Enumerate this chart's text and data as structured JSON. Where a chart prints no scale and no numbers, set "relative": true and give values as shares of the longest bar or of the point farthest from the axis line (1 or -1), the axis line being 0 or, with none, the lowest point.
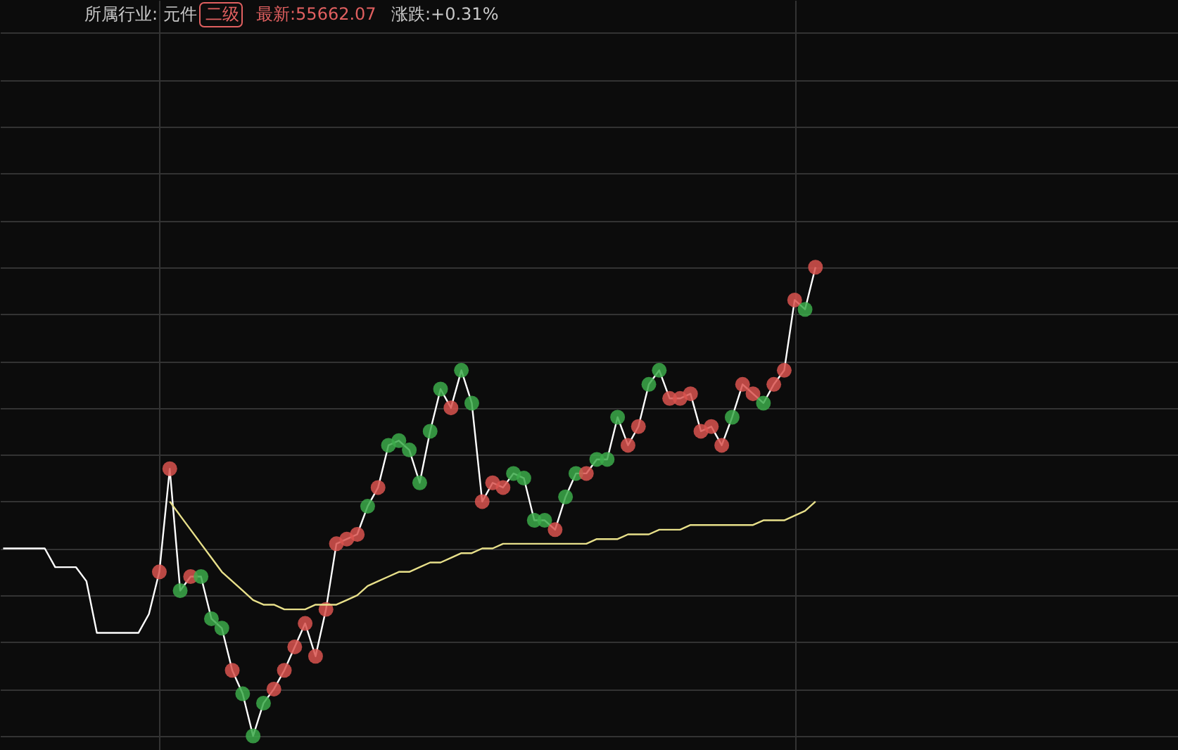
{
  "chart_data": {
    "type": "line",
    "relative": true,
    "title": "所属行业: 元件",
    "subtitle": "二级",
    "annotations": [
      "最新:55662.07",
      "涨跌:+0.31%"
    ],
    "categories": [
      null,
      null,
      null,
      null,
      null,
      null,
      null,
      null,
      null,
      null,
      null,
      null,
      null,
      null,
      null,
      null,
      null,
      null,
      null,
      null,
      null,
      null,
      null,
      null,
      null,
      null,
      null,
      null,
      null,
      null,
      null,
      null,
      null,
      null,
      null,
      null,
      null,
      null,
      null,
      null,
      null,
      null,
      null,
      null,
      null,
      null,
      null,
      null,
      null,
      null,
      null,
      null,
      null,
      null,
      null,
      null,
      null,
      null,
      null,
      null,
      null,
      null,
      null,
      null,
      null,
      null,
      null,
      null,
      null,
      null,
      null,
      null,
      null,
      null,
      null,
      null,
      null,
      null,
      null
    ],
    "grid": true,
    "marker": "circle",
    "line_style": "solid",
    "series": [
      {
        "color": "#ffffff",
        "values": [
          0.4,
          0.4,
          0.4,
          0.4,
          0.4,
          0.36,
          0.36,
          0.36,
          0.33,
          0.22,
          0.22,
          0.22,
          0.22,
          0.22,
          0.26,
          0.35,
          0.57,
          0.31,
          0.34,
          0.34,
          0.25,
          0.23,
          0.14,
          0.09,
          0,
          0.07,
          0.1,
          0.14,
          0.19,
          0.24,
          0.17,
          0.27,
          0.41,
          0.42,
          0.43,
          0.49,
          0.53,
          0.62,
          0.63,
          0.61,
          0.54,
          0.65,
          0.74,
          0.7,
          0.78,
          0.71,
          0.5,
          0.54,
          0.53,
          0.56,
          0.55,
          0.46,
          0.46,
          0.44,
          0.51,
          0.56,
          0.56,
          0.59,
          0.59,
          0.68,
          0.62,
          0.66,
          0.75,
          0.78,
          0.72,
          0.72,
          0.73,
          0.65,
          0.66,
          0.62,
          0.68,
          0.75,
          0.73,
          0.71,
          0.75,
          0.78,
          0.93,
          0.91,
          1
        ],
        "colors": [
          null,
          null,
          null,
          null,
          null,
          null,
          null,
          null,
          null,
          null,
          null,
          null,
          null,
          null,
          null,
          "#d9534f",
          "#d9534f",
          "#3caa4a",
          "#d9534f",
          "#3caa4a",
          "#3caa4a",
          "#3caa4a",
          "#d9534f",
          "#3caa4a",
          "#3caa4a",
          "#3caa4a",
          "#d9534f",
          "#d9534f",
          "#d9534f",
          "#d9534f",
          "#d9534f",
          "#d9534f",
          "#d9534f",
          "#d9534f",
          "#d9534f",
          "#3caa4a",
          "#d9534f",
          "#3caa4a",
          "#3caa4a",
          "#3caa4a",
          "#3caa4a",
          "#3caa4a",
          "#3caa4a",
          "#d9534f",
          "#3caa4a",
          "#3caa4a",
          "#d9534f",
          "#d9534f",
          "#d9534f",
          "#3caa4a",
          "#3caa4a",
          "#3caa4a",
          "#3caa4a",
          "#d9534f",
          "#3caa4a",
          "#3caa4a",
          "#d9534f",
          "#3caa4a",
          "#3caa4a",
          "#3caa4a",
          "#d9534f",
          "#d9534f",
          "#3caa4a",
          "#3caa4a",
          "#d9534f",
          "#d9534f",
          "#d9534f",
          "#d9534f",
          "#d9534f",
          "#d9534f",
          "#3caa4a",
          "#d9534f",
          "#d9534f",
          "#3caa4a",
          "#d9534f",
          "#d9534f",
          "#d9534f",
          "#3caa4a",
          "#d9534f"
        ]
      },
      {
        "color": "#e8e08a",
        "marker": "none",
        "values": [
          null,
          null,
          null,
          null,
          null,
          null,
          null,
          null,
          null,
          null,
          null,
          null,
          null,
          null,
          null,
          null,
          0.5,
          0.47,
          0.44,
          0.41,
          0.38,
          0.35,
          0.33,
          0.31,
          0.29,
          0.28,
          0.28,
          0.27,
          0.27,
          0.27,
          0.28,
          0.28,
          0.28,
          0.29,
          0.3,
          0.32,
          0.33,
          0.34,
          0.35,
          0.35,
          0.36,
          0.37,
          0.37,
          0.38,
          0.39,
          0.39,
          0.4,
          0.4,
          0.41,
          0.41,
          0.41,
          0.41,
          0.41,
          0.41,
          0.41,
          0.41,
          0.41,
          0.42,
          0.42,
          0.42,
          0.43,
          0.43,
          0.43,
          0.44,
          0.44,
          0.44,
          0.45,
          0.45,
          0.45,
          0.45,
          0.45,
          0.45,
          0.45,
          0.46,
          0.46,
          0.46,
          0.47,
          0.48,
          0.5
        ]
      }
    ]
  }
}
